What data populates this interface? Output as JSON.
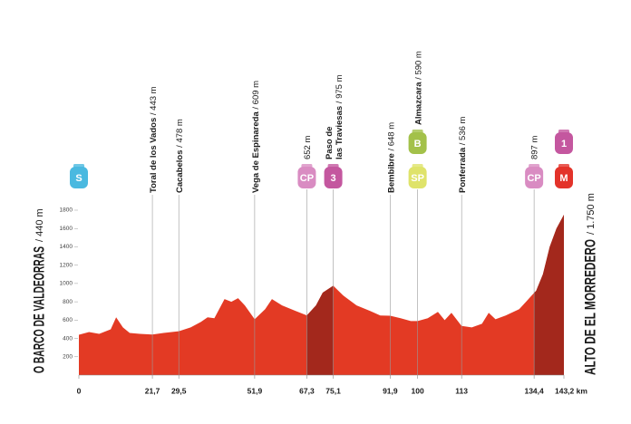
{
  "chart_data": {
    "type": "area",
    "x": [
      0,
      3,
      6,
      9.4,
      11,
      13,
      15,
      18,
      21.7,
      25,
      29.5,
      33,
      36,
      38,
      40,
      43,
      45,
      47,
      49,
      51.9,
      55,
      57,
      60,
      64,
      67.3,
      70,
      72,
      75.1,
      78,
      82,
      86,
      89,
      91.9,
      95,
      98,
      100,
      103,
      106,
      108,
      110,
      113,
      116,
      119,
      121,
      123,
      126,
      130,
      132,
      134.4,
      135,
      137,
      139,
      141,
      143.2
    ],
    "values": [
      440,
      470,
      450,
      500,
      630,
      520,
      460,
      450,
      443,
      460,
      478,
      520,
      580,
      630,
      620,
      830,
      800,
      840,
      760,
      609,
      720,
      830,
      760,
      700,
      652,
      760,
      900,
      975,
      870,
      760,
      700,
      650,
      648,
      620,
      590,
      590,
      620,
      690,
      600,
      680,
      536,
      520,
      560,
      680,
      610,
      650,
      720,
      800,
      897,
      920,
      1100,
      1400,
      1600,
      1750
    ],
    "color": "#e33a24",
    "climb_color": "#a3281c",
    "climbs": [
      [
        67.3,
        75.1
      ],
      [
        134.4,
        143.2
      ]
    ],
    "xlim": [
      0,
      143.2
    ],
    "ylim": [
      0,
      1800
    ],
    "yticks": [
      200,
      400,
      600,
      800,
      1000,
      1200,
      1400,
      1600,
      1800
    ],
    "xticks": [
      0,
      {
        "value": 21.7,
        "label": "21,7"
      },
      {
        "value": 29.5,
        "label": "29,5"
      },
      {
        "value": 51.9,
        "label": "51,9"
      },
      {
        "value": 67.3,
        "label": "67,3"
      },
      {
        "value": 75.1,
        "label": "75,1"
      },
      {
        "value": 91.9,
        "label": "91,9"
      },
      100,
      113,
      {
        "value": 134.4,
        "label": "134,4"
      },
      {
        "value": 143.2,
        "label": "143,2 km"
      }
    ],
    "start": {
      "name": "O BARCO DE VALDEORRAS",
      "altitude": "/ 440 m"
    },
    "finish": {
      "name": "ALTO DE EL MORREDERO",
      "altitude": "/ 1.750 m"
    },
    "waypoints": [
      {
        "km": 0,
        "badges": [
          {
            "text": "S",
            "color": "#4ab9e0"
          }
        ]
      },
      {
        "km": 21.7,
        "name": [
          "Toral de los Vados"
        ],
        "altitude": "/ 443 m"
      },
      {
        "km": 29.5,
        "name": [
          "Cacabelos"
        ],
        "altitude": "/ 478 m"
      },
      {
        "km": 51.9,
        "name": [
          "Vega de Espinareda"
        ],
        "altitude": "/ 609 m"
      },
      {
        "km": 67.3,
        "altitude": "652 m",
        "badges": [
          {
            "text": "CP",
            "color": "#d98cc2"
          }
        ]
      },
      {
        "km": 75.1,
        "name": [
          "Paso de",
          "las Traviesas"
        ],
        "altitude": "/ 975 m",
        "badges": [
          {
            "text": "3",
            "color": "#c4579f"
          }
        ]
      },
      {
        "km": 91.9,
        "name": [
          "Bembibre"
        ],
        "altitude": "/ 648 m"
      },
      {
        "km": 100,
        "name": [
          "Almazcara"
        ],
        "altitude": "/ 590 m",
        "badges": [
          {
            "text": "B",
            "color": "#a3c14a"
          },
          {
            "text": "SP",
            "color": "#dfe36a"
          }
        ]
      },
      {
        "km": 113,
        "name": [
          "Ponferrada"
        ],
        "altitude": "/ 536 m"
      },
      {
        "km": 134.4,
        "altitude": "897 m",
        "badges": [
          {
            "text": "CP",
            "color": "#d98cc2"
          }
        ]
      },
      {
        "km": 143.2,
        "badges": [
          {
            "text": "1",
            "color": "#c4579f"
          },
          {
            "text": "M",
            "color": "#e3332a"
          }
        ]
      }
    ]
  }
}
